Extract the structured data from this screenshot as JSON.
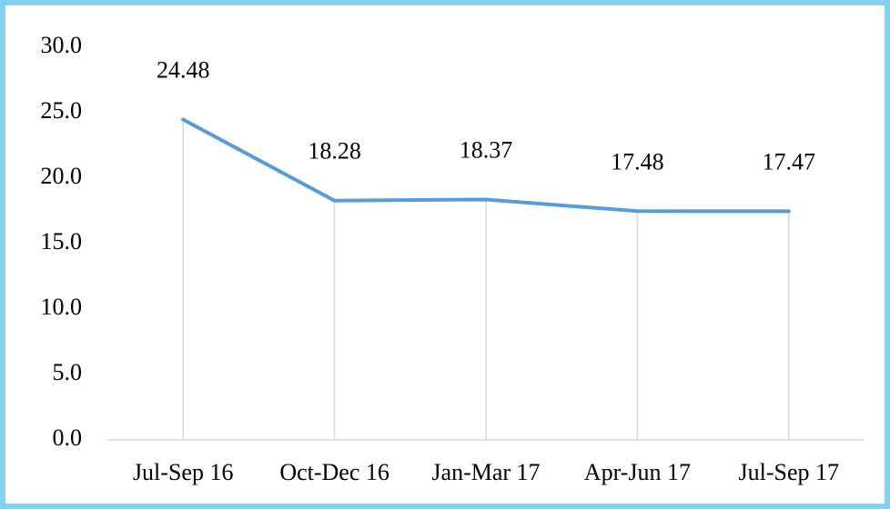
{
  "chart_data": {
    "type": "line",
    "categories": [
      "Jul-Sep 16",
      "Oct-Dec 16",
      "Jan-Mar 17",
      "Apr-Jun 17",
      "Jul-Sep 17"
    ],
    "values": [
      24.48,
      18.28,
      18.37,
      17.48,
      17.47
    ],
    "color": "#5b9bd5",
    "ylim": [
      0,
      30
    ],
    "yticks": [
      {
        "value": 0,
        "label": "0.0"
      },
      {
        "value": 5,
        "label": "5.0"
      },
      {
        "value": 10,
        "label": "10.0"
      },
      {
        "value": 15,
        "label": "15.0"
      },
      {
        "value": 20,
        "label": "20.0"
      },
      {
        "value": 25,
        "label": "25.0"
      },
      {
        "value": 30,
        "label": "30.0"
      }
    ],
    "drop_lines": true,
    "data_labels": true
  }
}
